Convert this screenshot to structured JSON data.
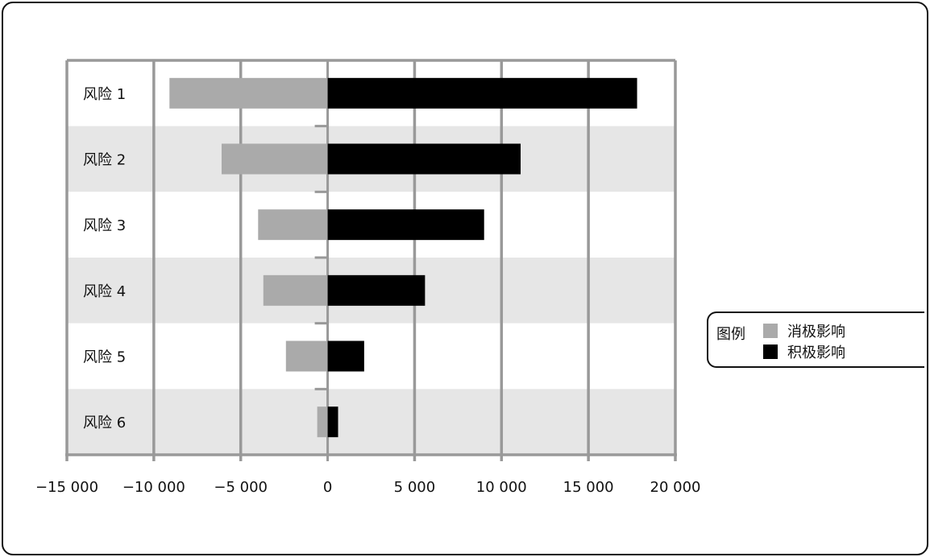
{
  "chart_data": {
    "type": "bar",
    "orientation": "horizontal",
    "stacked": "diverging",
    "categories": [
      "风险 1",
      "风险 2",
      "风险 3",
      "风险 4",
      "风险 5",
      "风险 6"
    ],
    "series": [
      {
        "name": "消极影响",
        "color": "#aaaaaa",
        "values": [
          -9100,
          -6100,
          -4000,
          -3700,
          -2400,
          -600
        ]
      },
      {
        "name": "积极影响",
        "color": "#000000",
        "values": [
          17800,
          11100,
          9000,
          5600,
          2100,
          600
        ]
      }
    ],
    "xlim": [
      -15000,
      20000
    ],
    "xticks": [
      -15000,
      -10000,
      -5000,
      0,
      5000,
      10000,
      15000,
      20000
    ],
    "xtick_labels": [
      "−15 000",
      "−10 000",
      "−5 000",
      "0",
      "5 000",
      "10 000",
      "15 000",
      "20 000"
    ],
    "grid": true,
    "band_colors": [
      "#ffffff",
      "#e6e6e6"
    ],
    "legend": {
      "title": "图例",
      "placement": "right"
    }
  }
}
